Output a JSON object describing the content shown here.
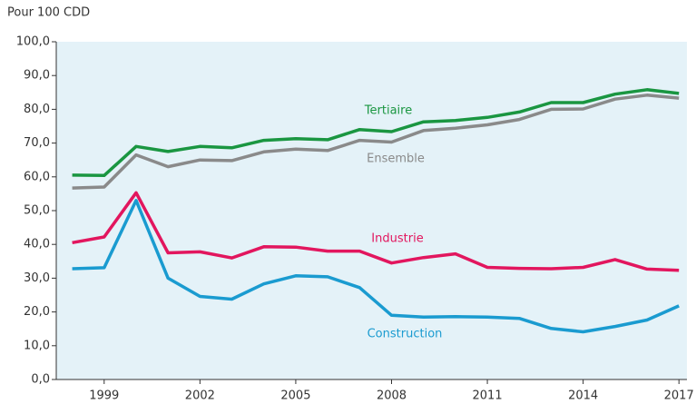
{
  "chart_data": {
    "type": "line",
    "subtitle": "Pour 100 CDD",
    "x": [
      1998,
      1999,
      2000,
      2001,
      2002,
      2003,
      2004,
      2005,
      2006,
      2007,
      2008,
      2009,
      2010,
      2011,
      2012,
      2013,
      2014,
      2015,
      2016,
      2017
    ],
    "series": [
      {
        "name": "Tertiaire",
        "color": "#1a9641",
        "values": [
          60.5,
          60.4,
          69,
          67.5,
          69,
          68.6,
          70.8,
          71.3,
          71,
          74,
          73.4,
          76.3,
          76.7,
          77.6,
          79.2,
          82,
          82,
          84.5,
          85.8,
          84.7
        ]
      },
      {
        "name": "Ensemble",
        "color": "#8a8a8a",
        "values": [
          56.7,
          57,
          66.5,
          63,
          65,
          64.8,
          67.4,
          68.2,
          67.8,
          70.8,
          70.3,
          73.7,
          74.4,
          75.4,
          77,
          80,
          80.1,
          83,
          84.2,
          83.3
        ]
      },
      {
        "name": "Industrie",
        "color": "#e2165e",
        "values": [
          40.5,
          42.2,
          55.3,
          37.5,
          37.8,
          36,
          39.3,
          39.2,
          38,
          38,
          34.5,
          36.1,
          37.2,
          33.2,
          32.9,
          32.8,
          33.2,
          35.5,
          32.7,
          32.3
        ]
      },
      {
        "name": "Construction",
        "color": "#1a9bd0",
        "values": [
          32.8,
          33.1,
          53,
          30,
          24.6,
          23.8,
          28.3,
          30.7,
          30.4,
          27.2,
          19,
          18.5,
          18.6,
          18.5,
          18.1,
          15.1,
          14.1,
          15.7,
          17.6,
          21.8
        ]
      }
    ],
    "xlim": [
      1997.5,
      2017.25
    ],
    "xticks": [
      1999,
      2002,
      2005,
      2008,
      2011,
      2014,
      2017
    ],
    "ylim": [
      0,
      100
    ],
    "yticks": [
      {
        "value": 0,
        "label": "0,0"
      },
      {
        "value": 10,
        "label": "10,0"
      },
      {
        "value": 20,
        "label": "20,0"
      },
      {
        "value": 30,
        "label": "30,0"
      },
      {
        "value": 40,
        "label": "40,0"
      },
      {
        "value": 50,
        "label": "50,0"
      },
      {
        "value": 60,
        "label": "60,0"
      },
      {
        "value": 70,
        "label": "70,0"
      },
      {
        "value": 80,
        "label": "80,0"
      },
      {
        "value": 90,
        "label": "90,0"
      },
      {
        "value": 100,
        "label": "100,0"
      }
    ],
    "grid": false,
    "background": "#e4f2f8"
  }
}
